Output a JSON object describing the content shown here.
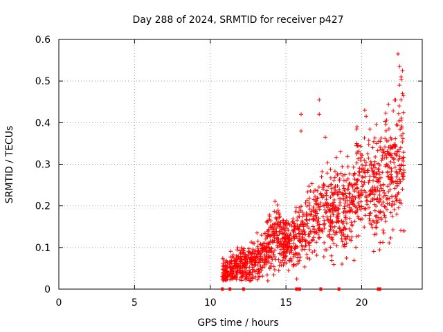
{
  "chart_data": {
    "type": "scatter",
    "title": "Day 288 of 2024, SRMTID for receiver p427",
    "xlabel": "GPS time / hours",
    "ylabel": "SRMTID / TECUs",
    "xlim": [
      0,
      24
    ],
    "ylim": [
      0,
      0.6
    ],
    "xticks": [
      0,
      5,
      10,
      15,
      20
    ],
    "xtick_labels": [
      "0",
      "5",
      "10",
      "15",
      "20"
    ],
    "yticks": [
      0,
      0.1,
      0.2,
      0.3,
      0.4,
      0.5,
      0.6
    ],
    "ytick_labels": [
      "0",
      "0.1",
      "0.2",
      "0.3",
      "0.4",
      "0.5",
      "0.6"
    ],
    "grid": true,
    "marker": "+",
    "series_color": "#ff0000",
    "series": [
      {
        "name": "SRMTID",
        "trend": [
          [
            10.8,
            0.045
          ],
          [
            11.2,
            0.045
          ],
          [
            11.6,
            0.05
          ],
          [
            12.0,
            0.055
          ],
          [
            12.4,
            0.06
          ],
          [
            12.8,
            0.065
          ],
          [
            13.2,
            0.075
          ],
          [
            13.6,
            0.09
          ],
          [
            14.0,
            0.115
          ],
          [
            14.4,
            0.13
          ],
          [
            14.8,
            0.11
          ],
          [
            15.2,
            0.105
          ],
          [
            15.6,
            0.12
          ],
          [
            16.0,
            0.14
          ],
          [
            16.4,
            0.15
          ],
          [
            16.8,
            0.16
          ],
          [
            17.2,
            0.17
          ],
          [
            17.6,
            0.18
          ],
          [
            18.0,
            0.19
          ],
          [
            18.4,
            0.195
          ],
          [
            18.8,
            0.2
          ],
          [
            19.2,
            0.21
          ],
          [
            19.6,
            0.23
          ],
          [
            20.0,
            0.24
          ],
          [
            20.4,
            0.25
          ],
          [
            20.8,
            0.24
          ],
          [
            21.2,
            0.26
          ],
          [
            21.6,
            0.28
          ],
          [
            22.0,
            0.3
          ],
          [
            22.4,
            0.31
          ],
          [
            22.8,
            0.32
          ]
        ],
        "notable_points": [
          [
            16.0,
            0.42
          ],
          [
            17.2,
            0.455
          ],
          [
            17.2,
            0.42
          ],
          [
            20.2,
            0.43
          ],
          [
            20.3,
            0.415
          ],
          [
            22.4,
            0.565
          ],
          [
            22.5,
            0.535
          ],
          [
            22.7,
            0.525
          ],
          [
            22.6,
            0.51
          ],
          [
            22.5,
            0.49
          ],
          [
            22.7,
            0.47
          ],
          [
            22.6,
            0.455
          ],
          [
            21.8,
            0.385
          ],
          [
            22.3,
            0.395
          ],
          [
            16.0,
            0.38
          ],
          [
            17.6,
            0.365
          ],
          [
            18.6,
            0.33
          ],
          [
            19.7,
            0.39
          ],
          [
            21.0,
            0.35
          ],
          [
            22.8,
            0.14
          ],
          [
            18.7,
            0.06
          ],
          [
            18.0,
            0.08
          ],
          [
            13.8,
            0.02
          ],
          [
            12.6,
            0.04
          ],
          [
            10.9,
            0.07
          ]
        ]
      }
    ],
    "axis_markers": {
      "description": "small filled squares on the x-axis",
      "x": [
        10.8,
        11.3,
        12.2,
        15.7,
        15.9,
        17.3,
        18.5,
        21.1,
        21.2
      ]
    }
  }
}
